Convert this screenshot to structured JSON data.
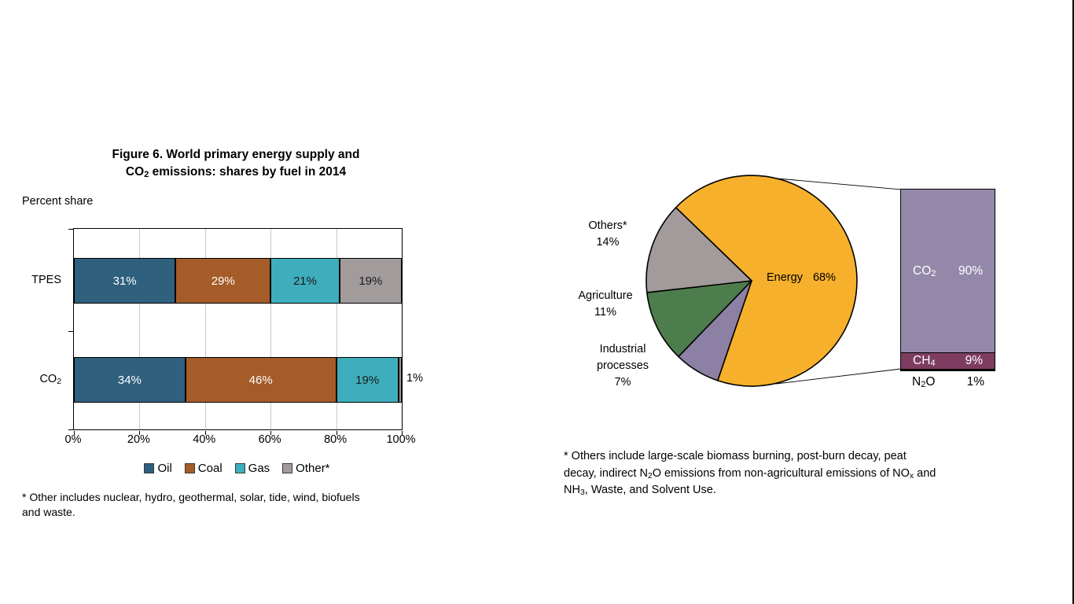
{
  "colors": {
    "oil": "#2F607E",
    "coal": "#A55C28",
    "gas": "#3FAEBC",
    "other": "#A29B9B",
    "energy": "#F6B02B",
    "others_pie": "#A39B9B",
    "agriculture": "#4E7D4D",
    "industrial_processes": "#8C80A4",
    "co2_bar": "#9488AA",
    "ch4_bar": "#7E3C60",
    "n2o_bar": "#0A0A0C",
    "gridline": "#C9C9C9",
    "border": "#000000"
  },
  "left_chart": {
    "title_line1": "Figure 6. World primary energy supply and",
    "title_line2_rich": [
      {
        "t": "CO"
      },
      {
        "sub": "2"
      },
      {
        "t": " emissions: shares by fuel in 2014"
      }
    ],
    "axis_caption": "Percent share",
    "row_labels": [
      [
        {
          "t": "TPES"
        }
      ],
      [
        {
          "t": "CO"
        },
        {
          "sub": "2"
        }
      ]
    ],
    "outside_label": "1%",
    "footnote_lines": [
      "* Other includes nuclear, hydro, geothermal, solar, tide, wind, biofuels",
      "and waste."
    ]
  },
  "right_chart": {
    "pie_labels": [
      {
        "lines": [
          "Others*",
          "14%"
        ]
      },
      {
        "lines": [
          "Agriculture",
          "11%"
        ]
      },
      {
        "lines": [
          "Industrial",
          "processes",
          "7%"
        ]
      }
    ],
    "energy_label": {
      "name": "Energy",
      "value": "68%"
    },
    "bar_labels": {
      "co2": {
        "formula": [
          {
            "t": "CO"
          },
          {
            "sub": "2"
          }
        ],
        "value": "90%"
      },
      "ch4": {
        "formula": [
          {
            "t": "CH"
          },
          {
            "sub": "4"
          }
        ],
        "value": "9%"
      },
      "n2o": {
        "formula": [
          {
            "t": "N"
          },
          {
            "sub": "2"
          },
          {
            "t": "O"
          }
        ],
        "value": "1%"
      }
    },
    "footnote_lines_rich": [
      [
        {
          "t": "* Others include large-scale biomass burning, post-burn decay, peat"
        }
      ],
      [
        {
          "t": "decay, indirect N"
        },
        {
          "sub": "2"
        },
        {
          "t": "O emissions from non-agricultural emissions of NO"
        },
        {
          "sub": "x"
        },
        {
          "t": " and"
        }
      ],
      [
        {
          "t": "NH"
        },
        {
          "sub": "3"
        },
        {
          "t": ", Waste, and Solvent Use."
        }
      ]
    ]
  },
  "chart_data": [
    {
      "type": "bar",
      "subtype": "horizontal-stacked",
      "title": "Figure 6. World primary energy supply and CO2 emissions: shares by fuel in 2014",
      "value_axis_caption": "Percent share",
      "categories": [
        "TPES",
        "CO2"
      ],
      "series": [
        {
          "name": "Oil",
          "values": [
            31,
            34
          ],
          "color": "#2F607E",
          "label_color": "#FFFFFF"
        },
        {
          "name": "Coal",
          "values": [
            29,
            46
          ],
          "color": "#A55C28",
          "label_color": "#FFFFFF"
        },
        {
          "name": "Gas",
          "values": [
            21,
            19
          ],
          "color": "#3FAEBC",
          "label_color": "#1A1A1A"
        },
        {
          "name": "Other*",
          "values": [
            19,
            1
          ],
          "color": "#A29B9B",
          "label_color": "#1A1A1A"
        }
      ],
      "xlim": [
        0,
        100
      ],
      "x_tick_labels": [
        "0%",
        "20%",
        "40%",
        "60%",
        "80%",
        "100%"
      ],
      "grid": "vertical",
      "legend_position": "bottom",
      "footnote": "* Other includes nuclear, hydro, geothermal, solar, tide, wind, biofuels and waste."
    },
    {
      "type": "pie",
      "title": "",
      "start_angle_deg_clockwise_from_top": 314,
      "slices": [
        {
          "key": "energy",
          "label": "Energy",
          "value": 68,
          "color": "#F6B02B"
        },
        {
          "key": "industrial",
          "label": "Industrial processes",
          "value": 7,
          "color": "#8C80A4"
        },
        {
          "key": "agriculture",
          "label": "Agriculture",
          "value": 11,
          "color": "#4E7D4D"
        },
        {
          "key": "others",
          "label": "Others*",
          "value": 14,
          "color": "#A39B9B"
        }
      ],
      "linked_bar": {
        "description": "Breakdown shown as stacked column linked to pie",
        "segments": [
          {
            "key": "co2",
            "label": "CO2",
            "value": 90,
            "color": "#9488AA"
          },
          {
            "key": "ch4",
            "label": "CH4",
            "value": 9,
            "color": "#7E3C60"
          },
          {
            "key": "n2o",
            "label": "N2O",
            "value": 1,
            "color": "#0A0A0C"
          }
        ]
      },
      "footnote": "* Others include large-scale biomass burning, post-burn decay, peat decay, indirect N2O emissions from non-agricultural emissions of NOx and NH3, Waste, and Solvent Use."
    }
  ]
}
